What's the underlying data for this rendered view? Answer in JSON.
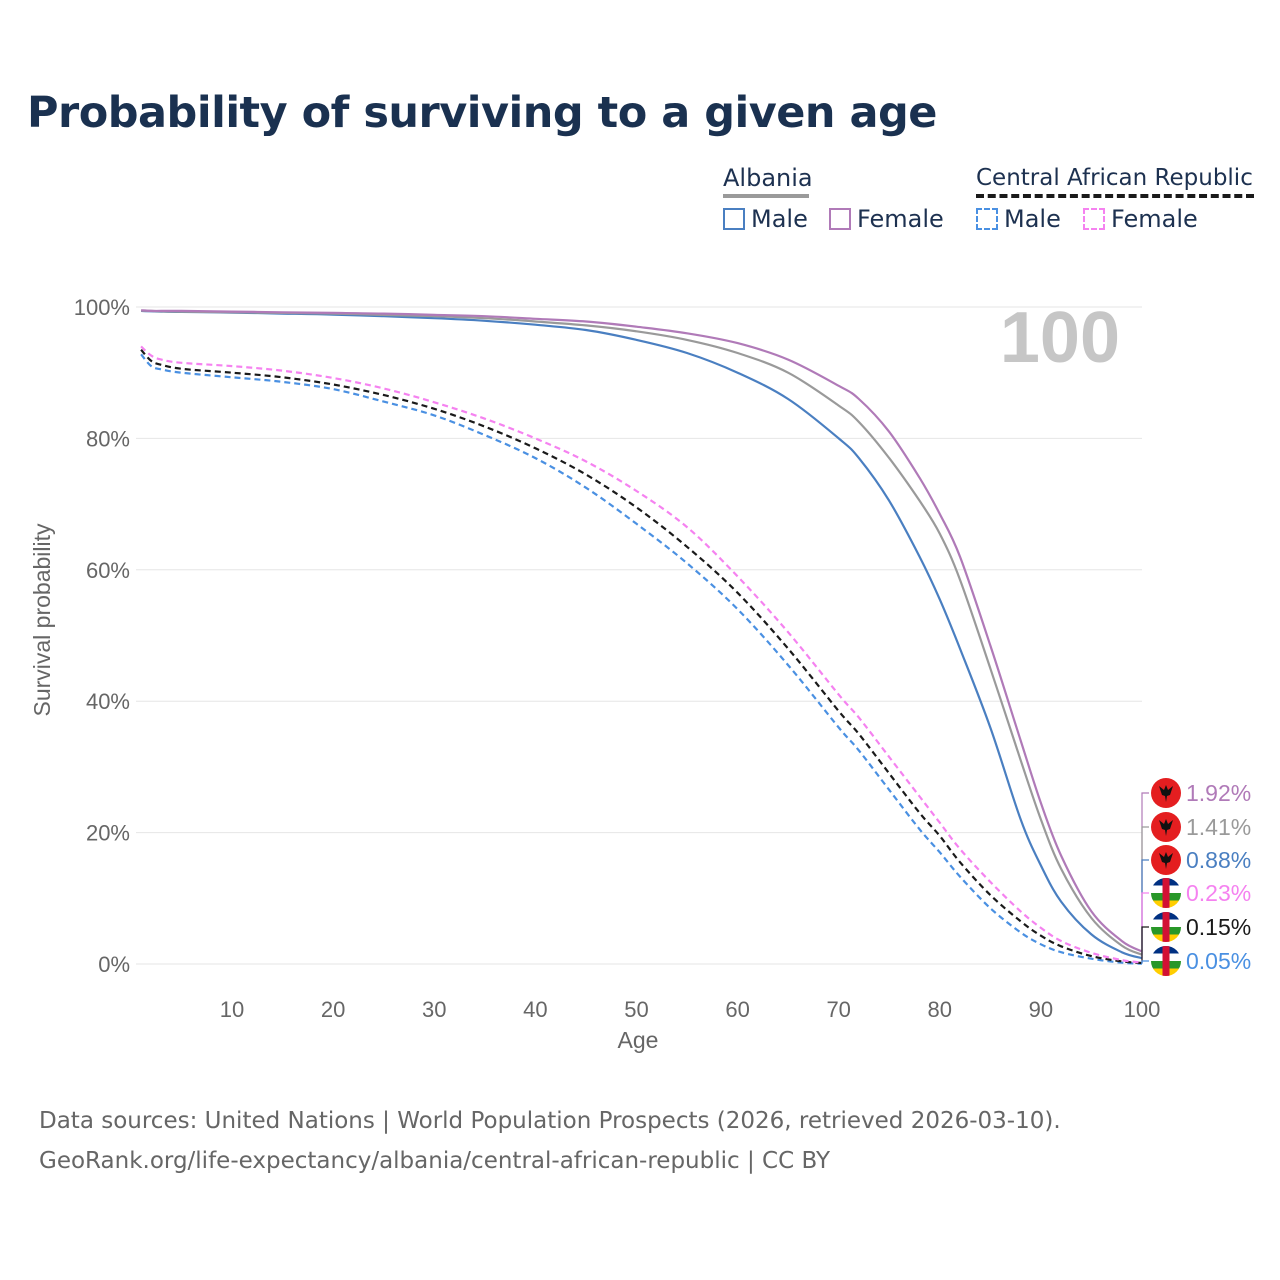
{
  "title": "Probability of surviving to a given age",
  "legend": {
    "groups": [
      {
        "name": "Albania",
        "line_color": "#9a9a9a",
        "line_style": "solid",
        "items": [
          {
            "label": "Male",
            "color": "#4a7fc1",
            "style": "solid"
          },
          {
            "label": "Female",
            "color": "#b07ab8",
            "style": "solid"
          }
        ]
      },
      {
        "name": "Central African Republic",
        "line_color": "#1a1a1a",
        "line_style": "dashed",
        "items": [
          {
            "label": "Male",
            "color": "#4a90e2",
            "style": "dashed"
          },
          {
            "label": "Female",
            "color": "#f582f0",
            "style": "dashed"
          }
        ]
      }
    ]
  },
  "highlight_age": "100",
  "chart_data": {
    "type": "line",
    "title": "Probability of surviving to a given age",
    "xlabel": "Age",
    "ylabel": "Survival probability",
    "xlim": [
      0.5,
      100
    ],
    "ylim": [
      0,
      100
    ],
    "x_ticks": [
      10,
      20,
      30,
      40,
      50,
      60,
      70,
      80,
      90,
      100
    ],
    "y_ticks": [
      0,
      20,
      40,
      60,
      80,
      100
    ],
    "y_tick_labels": [
      "0%",
      "20%",
      "40%",
      "60%",
      "80%",
      "100%"
    ],
    "grid": true,
    "x": [
      1,
      2,
      3,
      5,
      10,
      15,
      20,
      25,
      30,
      35,
      40,
      45,
      50,
      55,
      60,
      65,
      70,
      72,
      75,
      78,
      80,
      82,
      85,
      88,
      90,
      92,
      95,
      98,
      100
    ],
    "series": [
      {
        "name": "Albania Female",
        "color": "#b07ab8",
        "dash": "solid",
        "values": [
          99.5,
          99.4,
          99.4,
          99.4,
          99.3,
          99.2,
          99.1,
          99.0,
          98.8,
          98.6,
          98.2,
          97.8,
          97.0,
          96.0,
          94.5,
          92.0,
          88.0,
          86.0,
          81.0,
          74.0,
          68.5,
          62.0,
          48.5,
          34.0,
          24.5,
          16.5,
          8.0,
          3.5,
          1.92
        ],
        "end_label": "1.92%",
        "flag": "albania"
      },
      {
        "name": "Albania",
        "color": "#9a9a9a",
        "dash": "solid",
        "values": [
          99.45,
          99.4,
          99.35,
          99.3,
          99.2,
          99.1,
          99.0,
          98.8,
          98.6,
          98.3,
          97.8,
          97.2,
          96.3,
          95.0,
          93.0,
          90.0,
          85.0,
          82.5,
          77.0,
          70.5,
          65.5,
          58.5,
          45.0,
          31.0,
          22.0,
          14.5,
          7.0,
          2.8,
          1.41
        ],
        "end_label": "1.41%",
        "flag": "albania"
      },
      {
        "name": "Albania Male",
        "color": "#4a7fc1",
        "dash": "solid",
        "values": [
          99.4,
          99.35,
          99.3,
          99.25,
          99.15,
          99.0,
          98.85,
          98.6,
          98.3,
          97.9,
          97.3,
          96.5,
          95.0,
          93.0,
          90.0,
          86.0,
          80.0,
          77.0,
          70.5,
          62.0,
          55.5,
          48.0,
          36.0,
          22.0,
          15.0,
          9.5,
          4.5,
          1.8,
          0.88
        ],
        "end_label": "0.88%",
        "flag": "albania"
      },
      {
        "name": "Central African Republic Female",
        "color": "#f582f0",
        "dash": "dashed",
        "values": [
          94.0,
          92.6,
          92.0,
          91.5,
          91.0,
          90.3,
          89.2,
          87.6,
          85.5,
          83.0,
          80.0,
          76.5,
          72.0,
          66.5,
          59.0,
          50.5,
          41.0,
          37.5,
          31.5,
          25.5,
          21.5,
          17.5,
          12.5,
          8.0,
          5.5,
          3.5,
          1.7,
          0.6,
          0.23
        ],
        "end_label": "0.23%",
        "flag": "car"
      },
      {
        "name": "Central African Republic",
        "color": "#1a1a1a",
        "dash": "dashed",
        "values": [
          93.5,
          91.8,
          91.2,
          90.6,
          90.0,
          89.3,
          88.2,
          86.6,
          84.5,
          81.8,
          78.5,
          74.5,
          69.5,
          63.5,
          56.5,
          48.0,
          38.5,
          35.0,
          29.0,
          23.0,
          19.5,
          15.5,
          10.5,
          6.5,
          4.3,
          2.7,
          1.2,
          0.4,
          0.15
        ],
        "end_label": "0.15%",
        "flag": "car"
      },
      {
        "name": "Central African Republic Male",
        "color": "#4a90e2",
        "dash": "dashed",
        "values": [
          92.8,
          91.0,
          90.5,
          90.0,
          89.3,
          88.6,
          87.5,
          85.6,
          83.5,
          80.5,
          77.0,
          72.5,
          67.0,
          61.0,
          54.0,
          45.5,
          36.0,
          32.5,
          26.5,
          20.5,
          17.0,
          13.3,
          8.5,
          4.8,
          3.0,
          1.8,
          0.8,
          0.2,
          0.05
        ],
        "end_label": "0.05%",
        "flag": "car"
      }
    ]
  },
  "footer": {
    "line1": "Data sources: United Nations | World Population Prospects (2026, retrieved 2026-03-10).",
    "line2": "GeoRank.org/life-expectancy/albania/central-african-republic | CC BY"
  }
}
